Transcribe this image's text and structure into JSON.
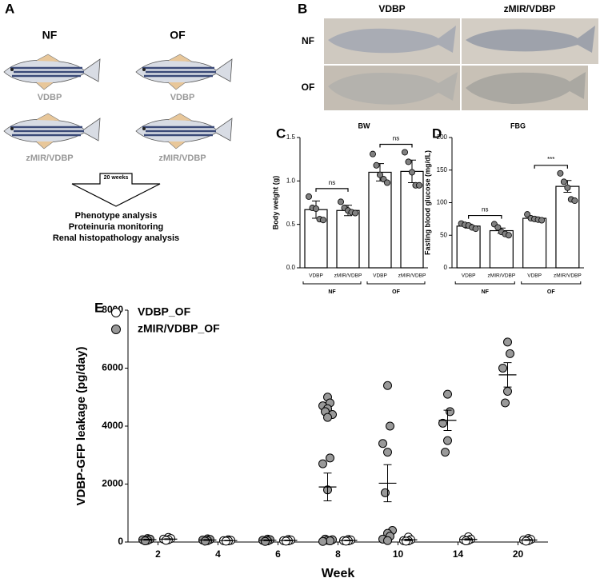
{
  "panel_a": {
    "label": "A",
    "diet_labels": [
      "NF",
      "OF"
    ],
    "fish_labels": [
      "VDBP",
      "VDBP",
      "zMIR/VDBP",
      "zMIR/VDBP"
    ],
    "arrow_text": "20 weeks",
    "analyses": [
      "Phenotype analysis",
      "Proteinuria monitoring",
      "Renal histopathology analysis"
    ]
  },
  "panel_b": {
    "label": "B",
    "columns": [
      "VDBP",
      "zMIR/VDBP"
    ],
    "rows": [
      "NF",
      "OF"
    ]
  },
  "panel_labels": [
    "C",
    "D",
    "E"
  ],
  "chart_data": [
    {
      "type": "bar",
      "title": "BW",
      "y_label": "Body weight (g)",
      "categories": [
        "VDBP",
        "zMIR/VDBP",
        "VDBP",
        "zMIR/VDBP"
      ],
      "groups": [
        "NF",
        "OF"
      ],
      "values": [
        0.67,
        0.66,
        1.1,
        1.11
      ],
      "errors": [
        0.1,
        0.06,
        0.1,
        0.13
      ],
      "points": [
        [
          0.82,
          0.69,
          0.68,
          0.56,
          0.55
        ],
        [
          0.76,
          0.69,
          0.66,
          0.64,
          0.63
        ],
        [
          1.31,
          1.18,
          1.07,
          1.02,
          0.98
        ],
        [
          1.33,
          1.22,
          1.1,
          0.95,
          0.95
        ]
      ],
      "annotations": [
        "ns",
        "ns"
      ],
      "color": "#ffffff",
      "point_color": "#808080",
      "ylim": [
        0,
        1.5
      ],
      "yticks": [
        {
          "value": 0,
          "label": "0.0"
        },
        0.5,
        {
          "value": 1,
          "label": "1.0"
        },
        1.5
      ]
    },
    {
      "type": "bar",
      "title": "FBG",
      "y_label": "Fasting blood glucose (mg/dL)",
      "categories": [
        "VDBP",
        "zMIR/VDBP",
        "VDBP",
        "zMIR/VDBP"
      ],
      "groups": [
        "NF",
        "OF"
      ],
      "values": [
        64,
        57,
        76,
        125
      ],
      "errors": [
        3,
        4,
        2,
        9
      ],
      "points": [
        [
          68,
          66,
          65,
          62,
          60
        ],
        [
          67,
          62,
          55,
          52,
          50
        ],
        [
          82,
          76,
          75,
          74,
          73
        ],
        [
          145,
          132,
          123,
          105,
          103
        ]
      ],
      "annotations": [
        "ns",
        "***"
      ],
      "color": "#ffffff",
      "point_color": "#808080",
      "ylim": [
        0,
        200
      ],
      "yticks": [
        0,
        50,
        100,
        150,
        200
      ]
    },
    {
      "type": "scatter",
      "x_label": "Week",
      "y_label": "VDBP-GFP leakage (pg/day)",
      "categories": [
        "2",
        "4",
        "6",
        "8",
        "10",
        "14",
        "20"
      ],
      "series": [
        {
          "name": "VDBP_OF",
          "color": "#ffffff",
          "values": [
            [
              160,
              120,
              100,
              80,
              60
            ],
            [
              80,
              60,
              50,
              40,
              30
            ],
            [
              90,
              70,
              50,
              40,
              30
            ],
            [
              90,
              70,
              50,
              40,
              30
            ],
            [
              170,
              80,
              50,
              40,
              30
            ],
            [
              180,
              100,
              80,
              60,
              40
            ],
            [
              120,
              90,
              70,
              50,
              30
            ]
          ],
          "means": [
            100,
            50,
            55,
            55,
            75,
            90,
            70
          ],
          "errors": [
            15,
            10,
            10,
            10,
            25,
            25,
            15
          ]
        },
        {
          "name": "zMIR/VDBP_OF",
          "color": "#999999",
          "values": [
            [
              120,
              100,
              80,
              60,
              40
            ],
            [
              110,
              90,
              70,
              50,
              30
            ],
            [
              100,
              80,
              60,
              40,
              20
            ],
            [
              5000,
              4800,
              4700,
              4600,
              4500,
              4400,
              4300,
              2900,
              2700,
              1800,
              100,
              80,
              60,
              40,
              20
            ],
            [
              5400,
              4000,
              3400,
              3100,
              1700,
              400,
              300,
              200,
              100,
              50
            ],
            [
              5100,
              4500,
              4100,
              3500,
              3100
            ],
            [
              6900,
              6500,
              6000,
              5200,
              4800
            ]
          ],
          "means": [
            80,
            70,
            60,
            1900,
            2030,
            4200,
            5770
          ],
          "errors": [
            15,
            15,
            15,
            480,
            640,
            350,
            420
          ]
        }
      ],
      "ylim": [
        0,
        8000
      ],
      "yticks": [
        0,
        2000,
        4000,
        6000,
        8000
      ]
    }
  ]
}
